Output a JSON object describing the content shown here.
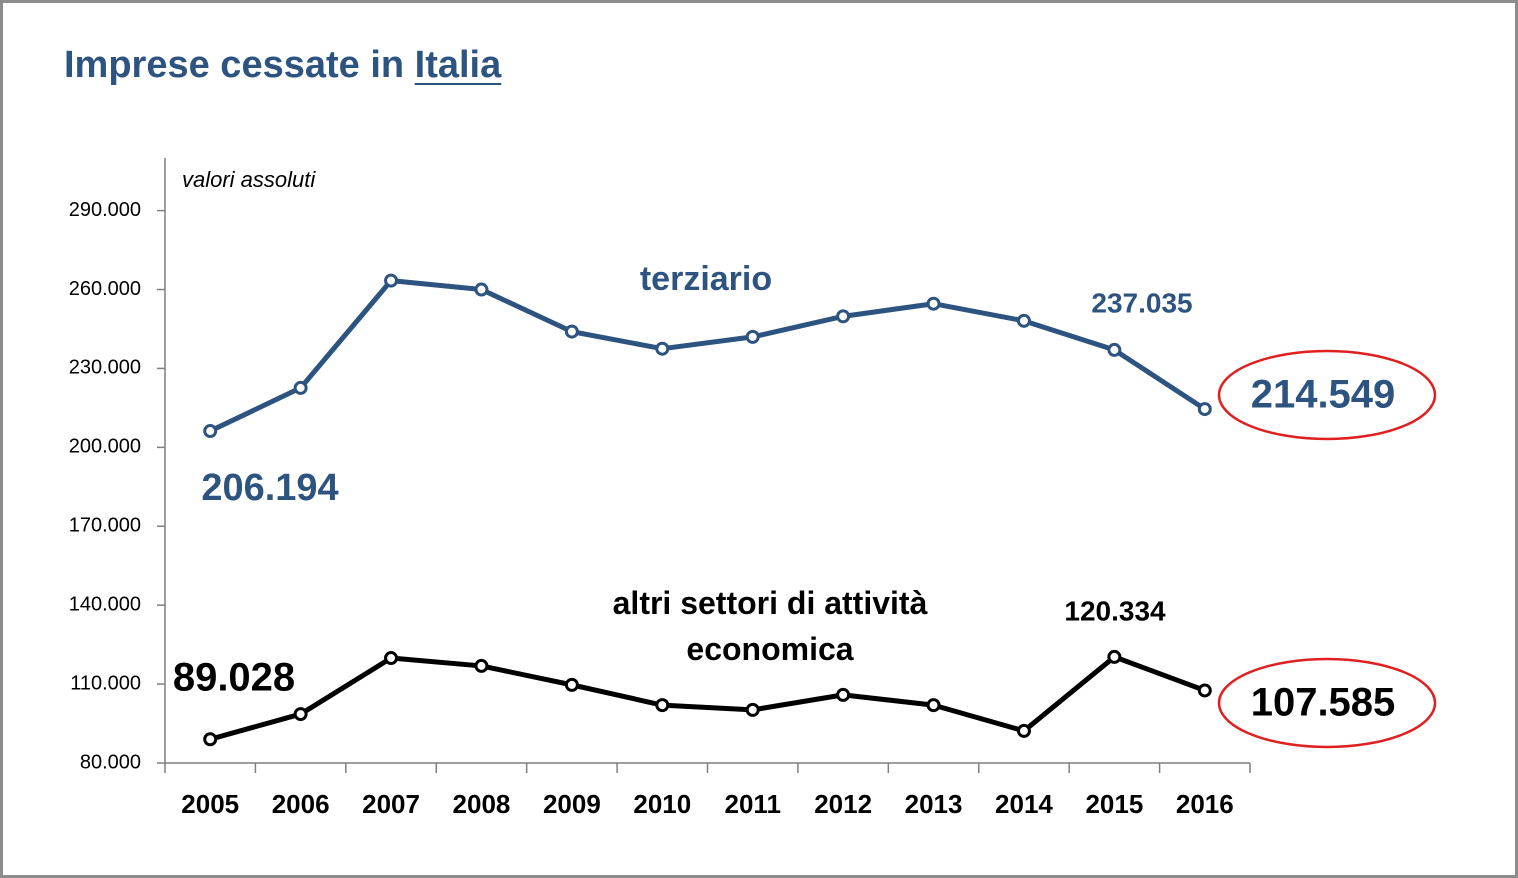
{
  "chart_data": {
    "type": "line",
    "title": "Imprese cessate in",
    "title_emphasis": "Italia",
    "y_axis_label": "valori assoluti",
    "categories": [
      "2005",
      "2006",
      "2007",
      "2008",
      "2009",
      "2010",
      "2011",
      "2012",
      "2013",
      "2014",
      "2015",
      "2016"
    ],
    "series": [
      {
        "name": "terziario",
        "color": "#2d5480",
        "values": [
          206194,
          222600,
          263400,
          260000,
          244000,
          237500,
          242000,
          249800,
          254600,
          248100,
          237035,
          214549
        ],
        "value_labels": [
          "206.194",
          null,
          null,
          null,
          null,
          null,
          null,
          null,
          null,
          null,
          "237.035",
          "214.549"
        ]
      },
      {
        "name": "altri settori di attività economica",
        "color": "#000000",
        "values": [
          89028,
          98600,
          119900,
          116900,
          109700,
          102000,
          100200,
          105900,
          102000,
          92200,
          120334,
          107585
        ],
        "value_labels": [
          "89.028",
          null,
          null,
          null,
          null,
          null,
          null,
          null,
          null,
          null,
          "120.334",
          "107.585"
        ]
      }
    ],
    "ylim": [
      80000,
      310000
    ],
    "yticks": [
      {
        "value": 80000,
        "label": "80.000"
      },
      {
        "value": 110000,
        "label": "110.000"
      },
      {
        "value": 140000,
        "label": "140.000"
      },
      {
        "value": 170000,
        "label": "170.000"
      },
      {
        "value": 200000,
        "label": "200.000"
      },
      {
        "value": 230000,
        "label": "230.000"
      },
      {
        "value": 260000,
        "label": "260.000"
      },
      {
        "value": 290000,
        "label": "290.000"
      }
    ]
  }
}
